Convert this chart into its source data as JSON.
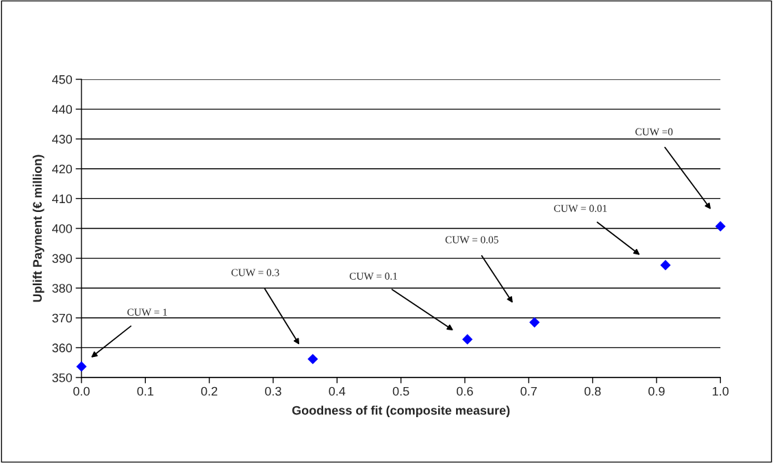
{
  "chart_data": {
    "type": "scatter",
    "xlabel": "Goodness of fit (composite measure)",
    "ylabel": "Uplift Payment (€ million)",
    "x": [
      0.0,
      0.362,
      0.604,
      0.709,
      0.914,
      1.0
    ],
    "series": [
      {
        "color": "#0000ff",
        "values": [
          353.7,
          356.2,
          362.8,
          368.5,
          387.7,
          400.7
        ]
      }
    ],
    "marker": "diamond",
    "xlim": [
      0.0,
      1.0
    ],
    "xticks": [
      {
        "value": 0,
        "label": "0.0"
      },
      0.1,
      0.2,
      0.3,
      0.4,
      0.5,
      0.6,
      0.7,
      0.8,
      0.9,
      {
        "value": 1,
        "label": "1.0"
      }
    ],
    "ylim": [
      350,
      450
    ],
    "yticks": [
      350,
      360,
      370,
      380,
      390,
      400,
      410,
      420,
      430,
      440,
      450
    ],
    "grid": "y",
    "legend": false,
    "annotations": [
      "CUW = 1",
      "CUW = 0.3",
      "CUW = 0.1",
      "CUW = 0.05",
      "CUW = 0.01",
      "CUW =0"
    ]
  }
}
